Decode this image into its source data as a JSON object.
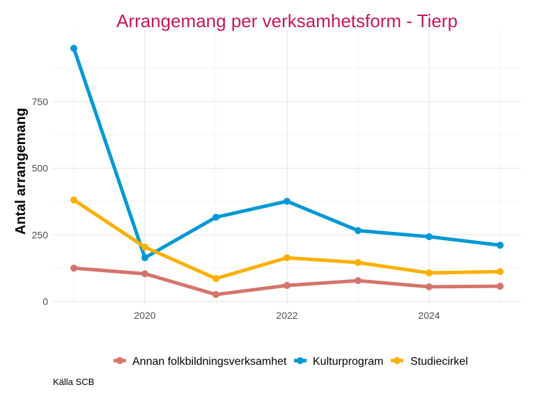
{
  "chart_data": {
    "type": "line",
    "title": "Arrangemang per verksamhetsform - Tierp",
    "xlabel": "",
    "ylabel": "Antal arrangemang",
    "caption": "Källa SCB",
    "x": [
      2019,
      2020,
      2021,
      2022,
      2023,
      2024,
      2025
    ],
    "xticks": [
      2020,
      2022,
      2024
    ],
    "yticks": [
      0,
      250,
      500,
      750
    ],
    "xlim": [
      2018.6,
      2025.3
    ],
    "ylim": [
      -15,
      1000
    ],
    "grid": true,
    "legend_position": "bottom",
    "title_color": "#C0175E",
    "series": [
      {
        "name": "Annan folkbildningsverksamhet",
        "color": "#D4756B",
        "values": [
          125,
          104,
          26,
          60,
          78,
          55,
          57
        ]
      },
      {
        "name": "Kulturprogram",
        "color": "#0098D4",
        "values": [
          950,
          164,
          316,
          376,
          266,
          243,
          211
        ]
      },
      {
        "name": "Studiecirkel",
        "color": "#FAB000",
        "values": [
          381,
          204,
          86,
          164,
          146,
          107,
          112
        ]
      }
    ]
  }
}
